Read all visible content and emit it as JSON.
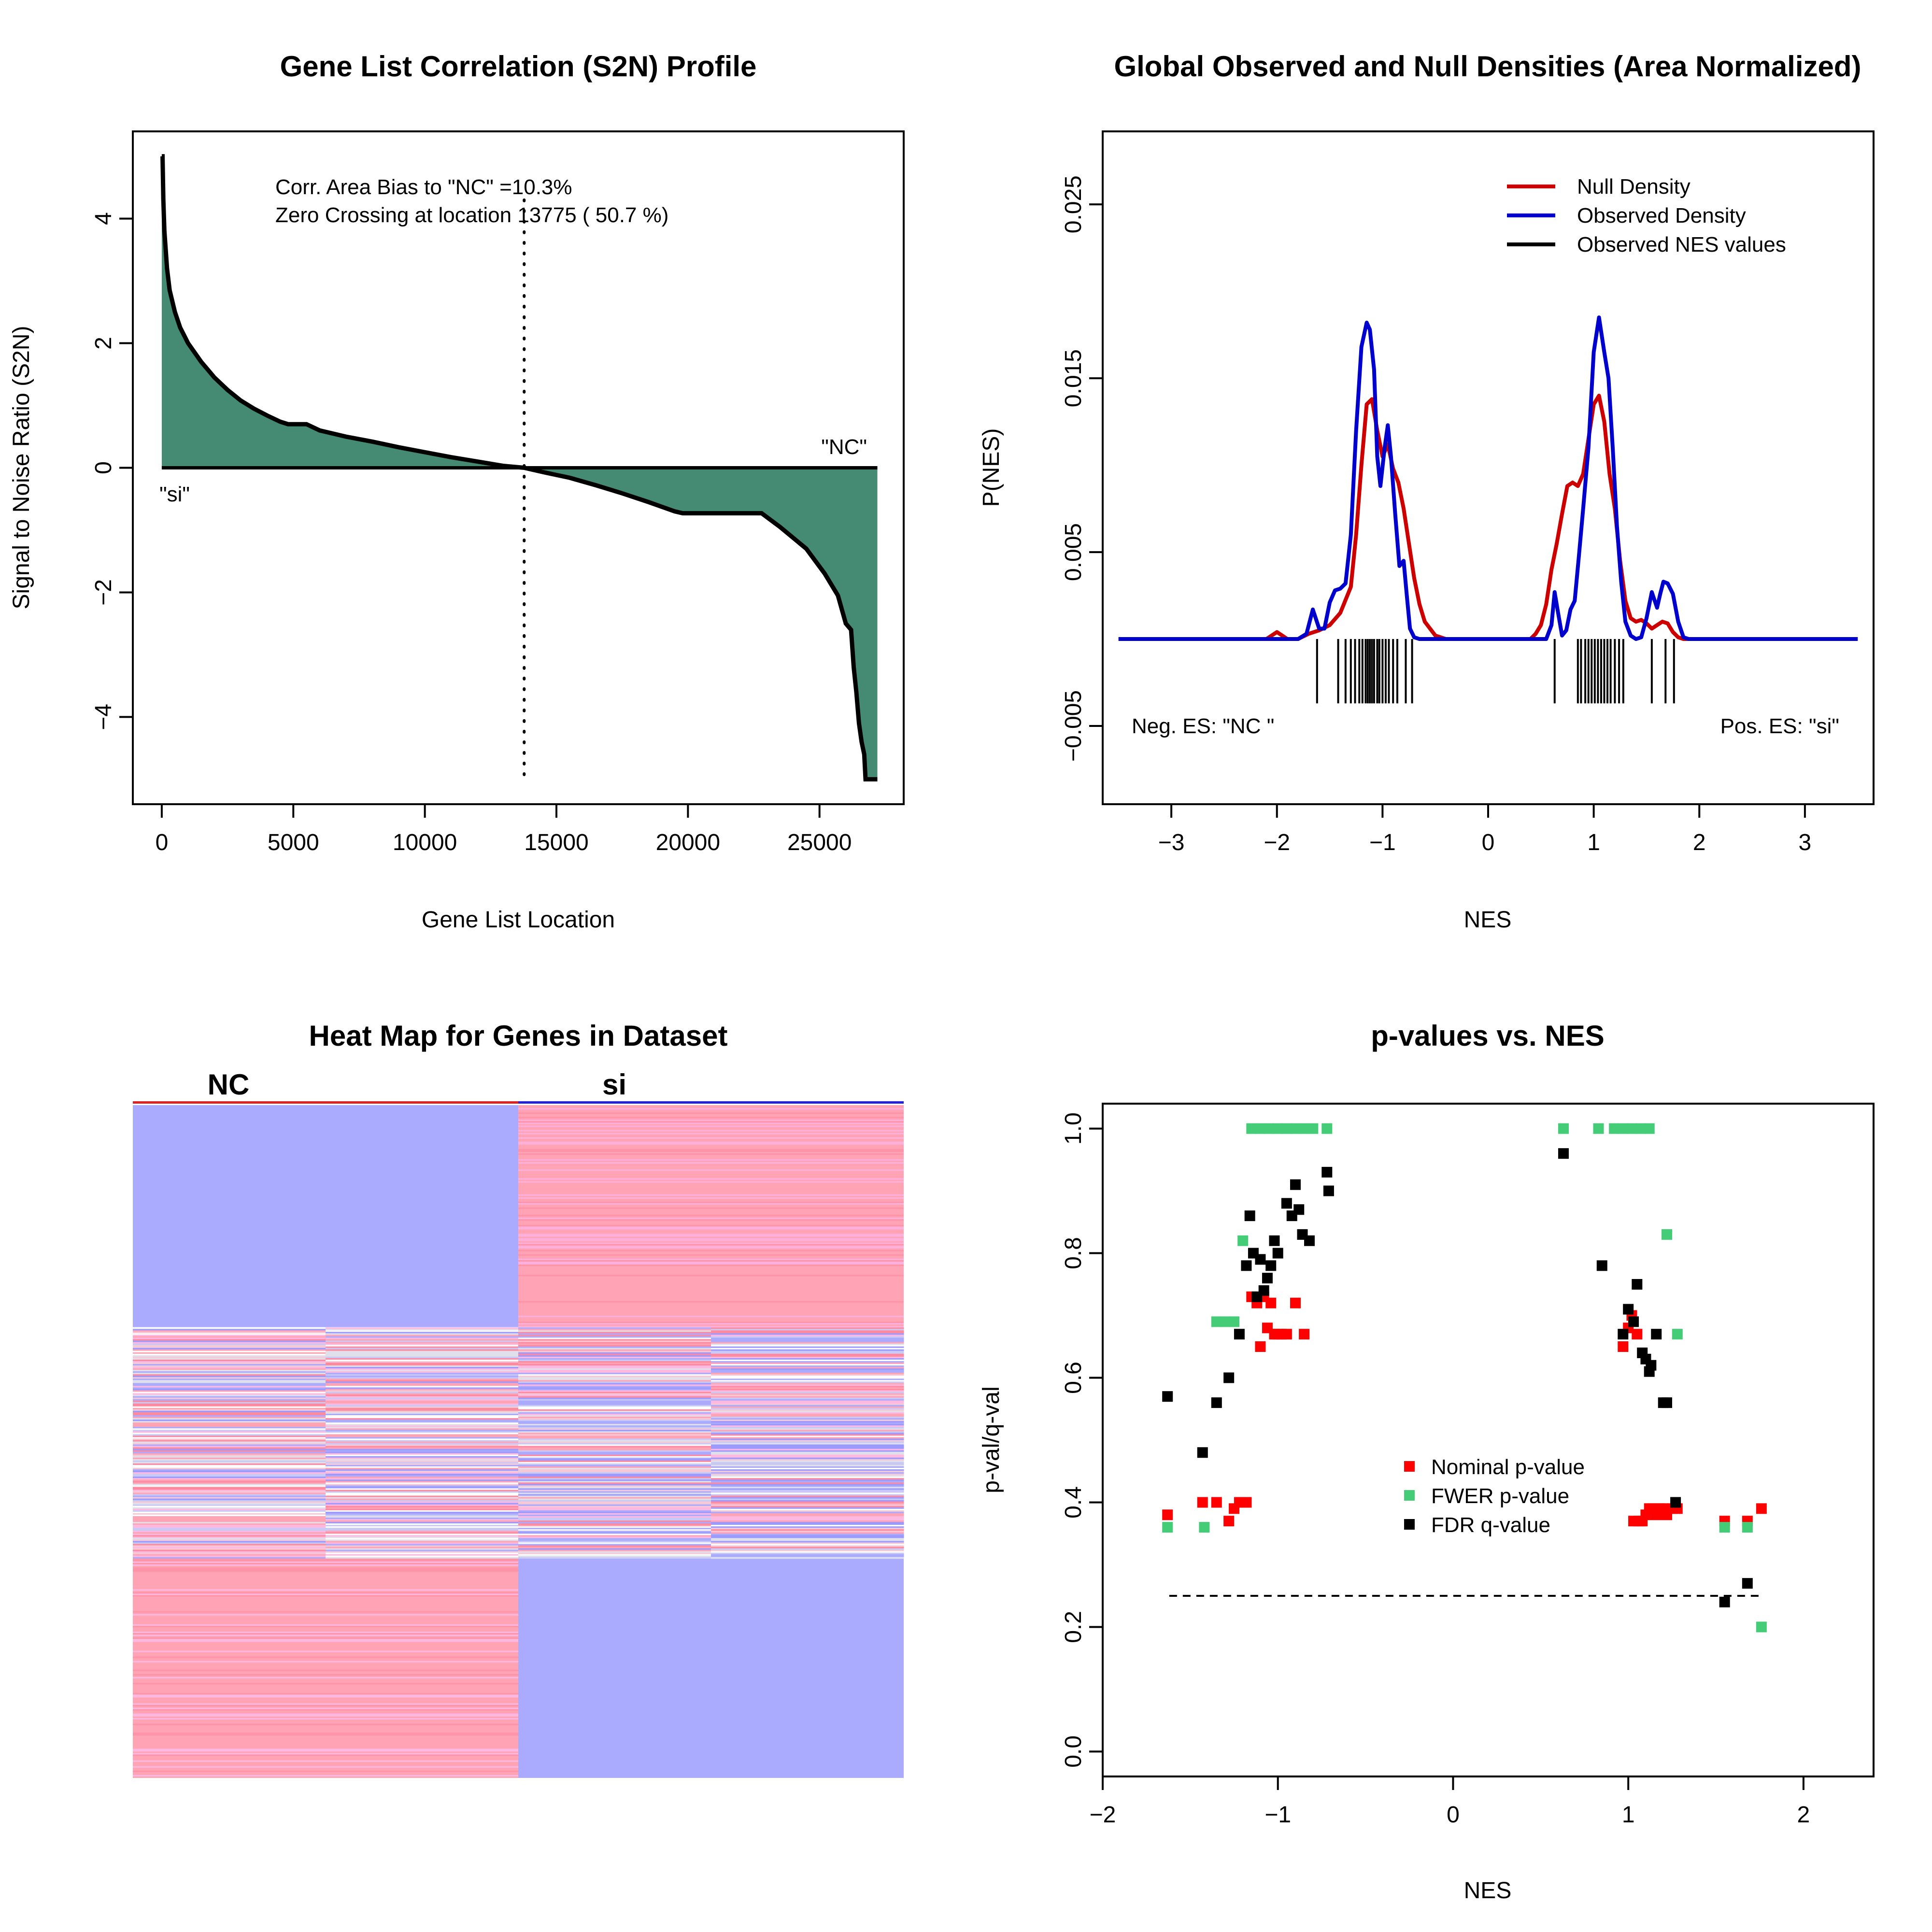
{
  "chart_data": [
    {
      "type": "area",
      "title": "Gene List Correlation (S2N) Profile",
      "xlabel": "Gene List Location",
      "ylabel": "Signal to Noise Ratio (S2N)",
      "xlim": [
        -1100,
        28200
      ],
      "ylim": [
        -5.4,
        5.4
      ],
      "xticks": [
        0,
        5000,
        10000,
        15000,
        20000,
        25000
      ],
      "xtick_labels": [
        "0",
        "5000",
        "10000",
        "15000",
        "20000",
        "25000"
      ],
      "yticks": [
        -4,
        -2,
        0,
        2,
        4
      ],
      "ytick_labels": [
        "−4",
        "−2",
        "0",
        "2",
        "4"
      ],
      "annotations": {
        "bias": "Corr. Area Bias to \"NC\" =10.3%",
        "zero_crossing": "Zero Crossing at location  13775  ( 50.7  %)",
        "left_label": "\"si\"",
        "right_label": "\"NC\""
      },
      "zero_crossing_location": 13775,
      "fill_color": "#458b74",
      "x": [
        0,
        30,
        60,
        100,
        200,
        300,
        500,
        700,
        1000,
        1500,
        2000,
        2500,
        3000,
        3500,
        4000,
        4500,
        4800,
        5500,
        6000,
        7000,
        8000,
        9000,
        10000,
        11000,
        12000,
        13000,
        13775,
        14500,
        15500,
        16500,
        17500,
        18500,
        19500,
        19800,
        21000,
        22000,
        22800,
        23500,
        24500,
        25200,
        25700,
        26000,
        26200,
        26300,
        26400,
        26500,
        26600,
        26700,
        26750,
        26800,
        27200
      ],
      "values": [
        5.0,
        5.0,
        4.3,
        3.8,
        3.2,
        2.85,
        2.5,
        2.25,
        2.0,
        1.7,
        1.45,
        1.25,
        1.08,
        0.95,
        0.84,
        0.74,
        0.7,
        0.7,
        0.6,
        0.5,
        0.42,
        0.33,
        0.25,
        0.17,
        0.1,
        0.03,
        0.0,
        -0.07,
        -0.16,
        -0.28,
        -0.41,
        -0.55,
        -0.7,
        -0.73,
        -0.73,
        -0.73,
        -0.73,
        -0.95,
        -1.3,
        -1.7,
        -2.05,
        -2.5,
        -2.6,
        -3.2,
        -3.6,
        -4.1,
        -4.4,
        -4.6,
        -5.0,
        -5.0,
        -5.0
      ]
    },
    {
      "type": "line",
      "title": "Global Observed and Null Densities (Area Normalized)",
      "xlabel": "NES",
      "ylabel": "P(NES)",
      "xlim": [
        -3.65,
        3.65
      ],
      "ylim": [
        -0.0095,
        0.0292
      ],
      "xticks": [
        -3,
        -2,
        -1,
        0,
        1,
        2,
        3
      ],
      "xtick_labels": [
        "−3",
        "−2",
        "−1",
        "0",
        "1",
        "2",
        "3"
      ],
      "yticks": [
        -0.005,
        0.005,
        0.015,
        0.025
      ],
      "ytick_labels": [
        "−0.005",
        "0.005",
        "0.015",
        "0.025"
      ],
      "corner_labels": {
        "left": "Neg. ES: \"NC \"",
        "right": "Pos. ES: \"si\""
      },
      "series": [
        {
          "name": "Null Density",
          "color": "#cc0000",
          "x": [
            -3.5,
            -2.1,
            -2.0,
            -1.9,
            -1.8,
            -1.7,
            -1.6,
            -1.5,
            -1.4,
            -1.3,
            -1.25,
            -1.2,
            -1.15,
            -1.1,
            -1.05,
            -1.0,
            -0.95,
            -0.9,
            -0.85,
            -0.8,
            -0.75,
            -0.7,
            -0.65,
            -0.6,
            -0.5,
            -0.4,
            -0.3,
            0.4,
            0.45,
            0.5,
            0.55,
            0.6,
            0.65,
            0.7,
            0.75,
            0.8,
            0.85,
            0.9,
            0.95,
            1.0,
            1.05,
            1.1,
            1.15,
            1.2,
            1.25,
            1.3,
            1.35,
            1.4,
            1.45,
            1.5,
            1.55,
            1.6,
            1.65,
            1.7,
            1.75,
            1.8,
            1.85,
            1.9,
            2.0,
            3.5
          ],
          "y": [
            0,
            0,
            0.0004,
            0,
            0,
            0.0003,
            0.0005,
            0.0008,
            0.0015,
            0.003,
            0.006,
            0.01,
            0.0135,
            0.0138,
            0.012,
            0.0105,
            0.0112,
            0.0098,
            0.009,
            0.0075,
            0.0055,
            0.0035,
            0.002,
            0.001,
            0.0002,
            0,
            0,
            0,
            0.0003,
            0.0008,
            0.002,
            0.004,
            0.0055,
            0.0072,
            0.0088,
            0.009,
            0.0088,
            0.0095,
            0.0115,
            0.0135,
            0.014,
            0.0125,
            0.0095,
            0.0075,
            0.0045,
            0.0022,
            0.0012,
            0.001,
            0.0011,
            0.0009,
            0.0006,
            0.0008,
            0.001,
            0.0009,
            0.0004,
            0.0001,
            0,
            0,
            0,
            0
          ]
        },
        {
          "name": "Observed Density",
          "color": "#0000cc",
          "x": [
            -3.5,
            -1.8,
            -1.72,
            -1.66,
            -1.6,
            -1.55,
            -1.5,
            -1.45,
            -1.4,
            -1.35,
            -1.3,
            -1.25,
            -1.2,
            -1.15,
            -1.12,
            -1.08,
            -1.05,
            -1.02,
            -0.98,
            -0.95,
            -0.92,
            -0.88,
            -0.84,
            -0.8,
            -0.77,
            -0.74,
            -0.7,
            -0.65,
            -0.6,
            -0.5,
            0.4,
            0.55,
            0.6,
            0.63,
            0.66,
            0.7,
            0.74,
            0.78,
            0.82,
            0.86,
            0.9,
            0.95,
            1.0,
            1.05,
            1.1,
            1.14,
            1.18,
            1.22,
            1.26,
            1.3,
            1.35,
            1.4,
            1.45,
            1.5,
            1.55,
            1.6,
            1.63,
            1.66,
            1.7,
            1.75,
            1.8,
            1.85,
            1.9,
            3.5
          ],
          "y": [
            0,
            0,
            0.0003,
            0.0017,
            0.0006,
            0.0006,
            0.0021,
            0.0028,
            0.0029,
            0.0032,
            0.006,
            0.012,
            0.0168,
            0.0182,
            0.0178,
            0.0155,
            0.0105,
            0.0088,
            0.011,
            0.0123,
            0.0105,
            0.0072,
            0.0042,
            0.0045,
            0.0025,
            0.0006,
            0.0001,
            0,
            0,
            0,
            0,
            0,
            0.0008,
            0.0027,
            0.0016,
            0.0002,
            0.0005,
            0.0017,
            0.0022,
            0.0048,
            0.0075,
            0.011,
            0.0165,
            0.0185,
            0.0165,
            0.015,
            0.011,
            0.0065,
            0.0033,
            0.001,
            0.0002,
            0,
            0.0001,
            0.0012,
            0.0027,
            0.0018,
            0.0026,
            0.0033,
            0.0032,
            0.0026,
            0.001,
            0.0001,
            0,
            0
          ]
        }
      ],
      "observed_nes_values": {
        "name": "Observed NES values",
        "color": "#000000",
        "values": [
          -1.62,
          -1.42,
          -1.35,
          -1.3,
          -1.26,
          -1.22,
          -1.19,
          -1.16,
          -1.14,
          -1.12,
          -1.1,
          -1.08,
          -1.05,
          -1.03,
          -1.0,
          -0.97,
          -0.94,
          -0.9,
          -0.86,
          -0.78,
          -0.72,
          0.63,
          0.85,
          0.88,
          0.92,
          0.95,
          0.98,
          1.01,
          1.04,
          1.07,
          1.1,
          1.13,
          1.16,
          1.2,
          1.24,
          1.28,
          1.55,
          1.68,
          1.76
        ]
      }
    },
    {
      "type": "heatmap",
      "title": "Heat Map for Genes in Dataset",
      "groups": [
        {
          "label": "NC",
          "color": "#dd2222"
        },
        {
          "label": "si",
          "color": "#2222dd"
        }
      ],
      "columns": 4,
      "colors": {
        "low": "#aaaaff",
        "high": "#ffa3b5",
        "neutral": "#e0e0ea"
      }
    },
    {
      "type": "scatter",
      "title": "p-values vs. NES",
      "xlabel": "NES",
      "ylabel": "p-val/q-val",
      "xlim": [
        -2.0,
        2.4
      ],
      "ylim": [
        -0.04,
        1.04
      ],
      "xticks": [
        -2,
        -1,
        0,
        1,
        2
      ],
      "xtick_labels": [
        "−2",
        "−1",
        "0",
        "1",
        "2"
      ],
      "yticks": [
        0.0,
        0.2,
        0.4,
        0.6,
        0.8,
        1.0
      ],
      "ytick_labels": [
        "0.0",
        "0.2",
        "0.4",
        "0.6",
        "0.8",
        "1.0"
      ],
      "threshold": {
        "y": 0.25,
        "x_from": -1.62,
        "x_to": 1.76
      },
      "series": [
        {
          "name": "Nominal p-value",
          "color": "#ff0000",
          "points": [
            [
              -1.63,
              0.38
            ],
            [
              -1.43,
              0.4
            ],
            [
              -1.35,
              0.4
            ],
            [
              -1.28,
              0.37
            ],
            [
              -1.25,
              0.39
            ],
            [
              -1.22,
              0.4
            ],
            [
              -1.18,
              0.4
            ],
            [
              -1.15,
              0.73
            ],
            [
              -1.12,
              0.72
            ],
            [
              -1.1,
              0.65
            ],
            [
              -1.08,
              0.73
            ],
            [
              -1.06,
              0.68
            ],
            [
              -1.04,
              0.72
            ],
            [
              -1.02,
              0.67
            ],
            [
              -1.0,
              0.67
            ],
            [
              -0.98,
              0.67
            ],
            [
              -0.95,
              0.67
            ],
            [
              -0.9,
              0.72
            ],
            [
              -0.85,
              0.67
            ],
            [
              0.97,
              0.65
            ],
            [
              1.0,
              0.68
            ],
            [
              1.02,
              0.7
            ],
            [
              1.05,
              0.67
            ],
            [
              1.03,
              0.37
            ],
            [
              1.06,
              0.37
            ],
            [
              1.08,
              0.37
            ],
            [
              1.1,
              0.38
            ],
            [
              1.12,
              0.39
            ],
            [
              1.14,
              0.39
            ],
            [
              1.16,
              0.38
            ],
            [
              1.18,
              0.39
            ],
            [
              1.2,
              0.39
            ],
            [
              1.22,
              0.38
            ],
            [
              1.25,
              0.39
            ],
            [
              1.28,
              0.39
            ],
            [
              1.55,
              0.37
            ],
            [
              1.68,
              0.37
            ],
            [
              1.76,
              0.39
            ]
          ]
        },
        {
          "name": "FWER p-value",
          "color": "#44cc77",
          "points": [
            [
              -1.63,
              0.36
            ],
            [
              -1.42,
              0.36
            ],
            [
              -1.35,
              0.69
            ],
            [
              -1.3,
              0.69
            ],
            [
              -1.25,
              0.69
            ],
            [
              -1.2,
              0.82
            ],
            [
              -1.15,
              1.0
            ],
            [
              -1.1,
              1.0
            ],
            [
              -1.05,
              1.0
            ],
            [
              -1.0,
              1.0
            ],
            [
              -0.95,
              1.0
            ],
            [
              -0.9,
              1.0
            ],
            [
              -0.85,
              1.0
            ],
            [
              -0.8,
              1.0
            ],
            [
              -0.72,
              1.0
            ],
            [
              0.63,
              1.0
            ],
            [
              0.83,
              1.0
            ],
            [
              0.92,
              1.0
            ],
            [
              0.97,
              1.0
            ],
            [
              1.02,
              1.0
            ],
            [
              1.07,
              1.0
            ],
            [
              1.12,
              1.0
            ],
            [
              1.22,
              0.83
            ],
            [
              1.28,
              0.67
            ],
            [
              1.55,
              0.36
            ],
            [
              1.68,
              0.36
            ],
            [
              1.76,
              0.2
            ]
          ]
        },
        {
          "name": "FDR q-value",
          "color": "#000000",
          "points": [
            [
              -1.63,
              0.57
            ],
            [
              -1.43,
              0.48
            ],
            [
              -1.35,
              0.56
            ],
            [
              -1.28,
              0.6
            ],
            [
              -1.22,
              0.67
            ],
            [
              -1.18,
              0.78
            ],
            [
              -1.16,
              0.86
            ],
            [
              -1.14,
              0.8
            ],
            [
              -1.12,
              0.73
            ],
            [
              -1.1,
              0.79
            ],
            [
              -1.08,
              0.74
            ],
            [
              -1.06,
              0.76
            ],
            [
              -1.04,
              0.78
            ],
            [
              -1.02,
              0.82
            ],
            [
              -1.0,
              0.8
            ],
            [
              -0.95,
              0.88
            ],
            [
              -0.92,
              0.86
            ],
            [
              -0.9,
              0.91
            ],
            [
              -0.88,
              0.87
            ],
            [
              -0.86,
              0.83
            ],
            [
              -0.82,
              0.82
            ],
            [
              -0.72,
              0.93
            ],
            [
              -0.71,
              0.9
            ],
            [
              0.63,
              0.96
            ],
            [
              0.85,
              0.78
            ],
            [
              0.97,
              0.67
            ],
            [
              1.0,
              0.71
            ],
            [
              1.03,
              0.69
            ],
            [
              1.05,
              0.75
            ],
            [
              1.08,
              0.64
            ],
            [
              1.1,
              0.63
            ],
            [
              1.12,
              0.61
            ],
            [
              1.13,
              0.62
            ],
            [
              1.16,
              0.67
            ],
            [
              1.2,
              0.56
            ],
            [
              1.22,
              0.56
            ],
            [
              1.27,
              0.4
            ],
            [
              1.55,
              0.24
            ],
            [
              1.68,
              0.27
            ]
          ]
        }
      ]
    }
  ]
}
